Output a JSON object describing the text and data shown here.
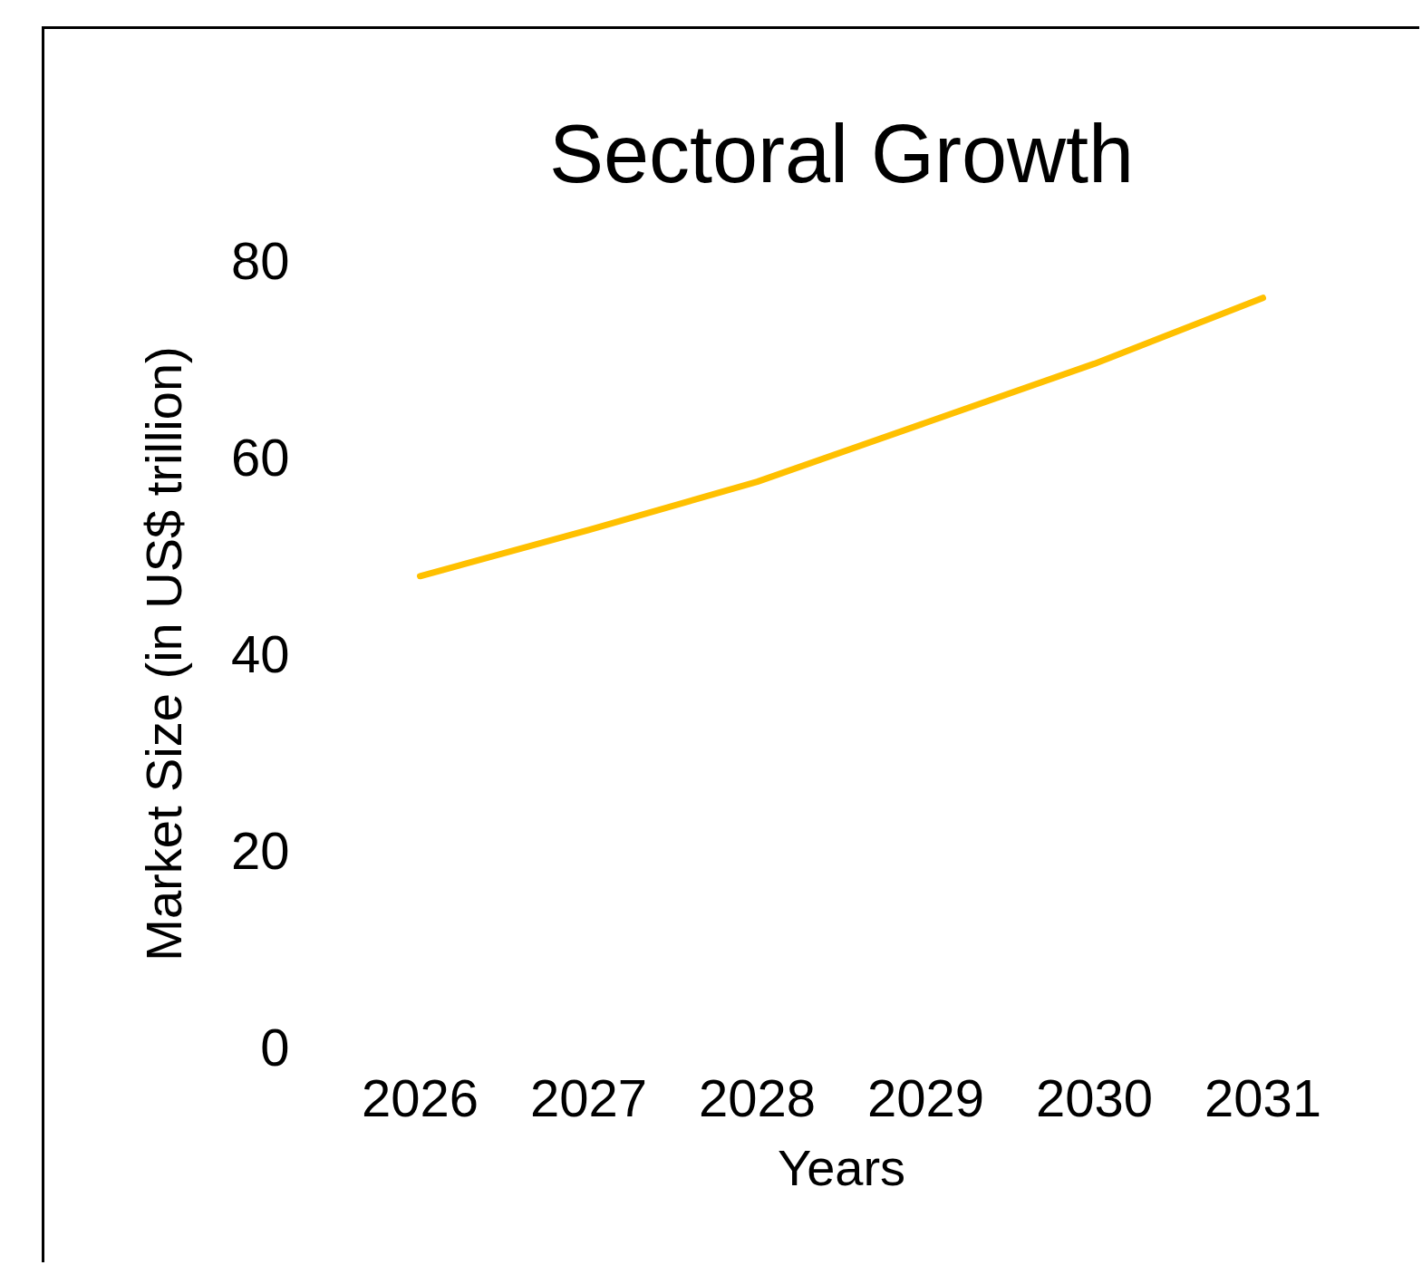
{
  "chart_data": {
    "type": "line",
    "title": "Sectoral Growth",
    "xlabel": "Years",
    "ylabel": "Market Size (in US$ trillion)",
    "categories": [
      "2026",
      "2027",
      "2028",
      "2029",
      "2030",
      "2031"
    ],
    "series": [
      {
        "color": "#ffc000",
        "values": [
          47.9,
          52.6,
          57.5,
          63.5,
          69.5,
          76.2
        ]
      }
    ],
    "ylim": [
      0,
      80
    ],
    "yticks": [
      0,
      20,
      40,
      60,
      80
    ],
    "line_style": "solid"
  }
}
